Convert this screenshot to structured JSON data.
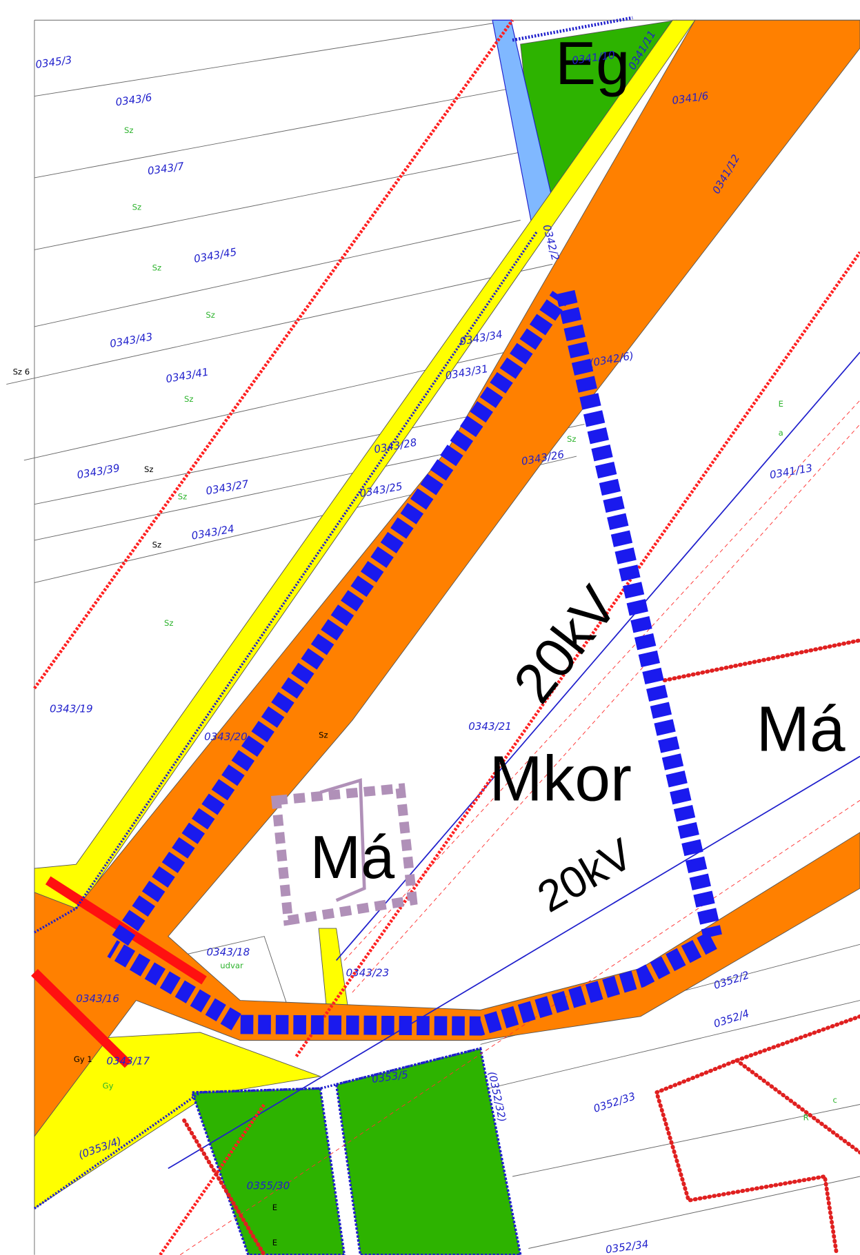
{
  "zone_labels": [
    "Eg",
    "Mkor",
    "Má",
    "Má"
  ],
  "power_line_labels": [
    "20kV",
    "20kV"
  ],
  "parcel_numbers": [
    "0345/3",
    "0343/6",
    "0343/7",
    "0343/45",
    "0343/43",
    "0343/41",
    "0343/39",
    "0343/27",
    "0343/24",
    "0343/19",
    "0343/20",
    "0343/21",
    "0343/18",
    "0343/23",
    "0343/16",
    "0343/17",
    "0343/25",
    "0343/26",
    "0343/28",
    "0343/31",
    "0343/34",
    "0341/6",
    "0341/12",
    "0341/13",
    "0341/11",
    "0341/10",
    "0352/2",
    "0352/4",
    "0352/33",
    "0352/34",
    "0355/30",
    "0353/5",
    "(0342/6)",
    "0342/2",
    "(0352/32)",
    "(0353/4)"
  ],
  "land_use_labels": [
    "Sz 6",
    "Sz",
    "Sz",
    "Sz",
    "Sz",
    "Sz",
    "Sz",
    "Sz",
    "Sz",
    "Sz",
    "Sz",
    "Sz",
    "Gy 1",
    "Gy",
    "udvar",
    "E",
    "E",
    "E",
    "a",
    "c",
    "R"
  ]
}
